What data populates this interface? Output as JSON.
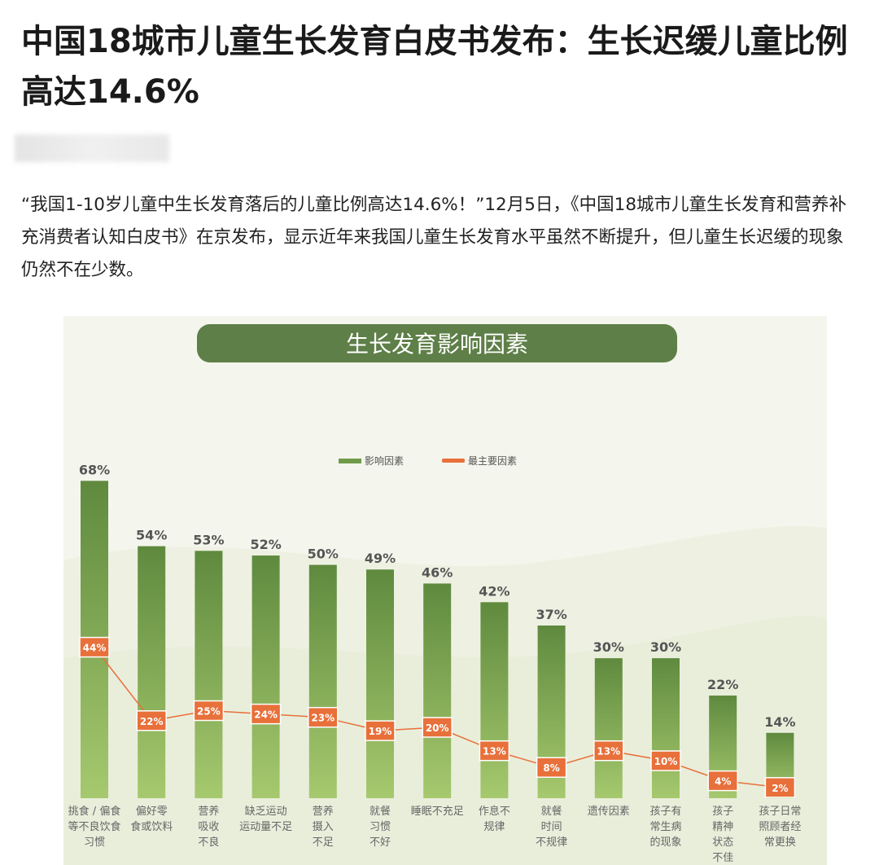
{
  "article": {
    "title": "中国18城市儿童生长发育白皮书发布：生长迟缓儿童比例高达14.6%",
    "paragraph": "“我国1-10岁儿童中生长发育落后的儿童比例高达14.6%！”12月5日，《中国18城市儿童生长发育和营养补充消费者认知白皮书》在京发布，显示近年来我国儿童生长发育水平虽然不断提升，但儿童生长迟缓的现象仍然不在少数。"
  },
  "chart_data": {
    "type": "bar",
    "title": "生长发育影响因素",
    "legend_position": "top-center",
    "categories": [
      "挑食/偏食等不良饮食习惯",
      "偏好零食或饮料",
      "营养吸收不良",
      "缺乏运动运动量不足",
      "营养摄入不足",
      "就餐习惯不好",
      "睡眠不充足",
      "作息不规律",
      "就餐时间不规律",
      "遗传因素",
      "孩子有常生病的现象",
      "孩子精神状态不佳",
      "孩子日常照顾者经常更换"
    ],
    "category_lines": [
      [
        "挑食 / 偏食",
        "等不良饮食",
        "习惯"
      ],
      [
        "偏好零",
        "食或饮料"
      ],
      [
        "营养",
        "吸收",
        "不良"
      ],
      [
        "缺乏运动",
        "运动量不足"
      ],
      [
        "营养",
        "摄入",
        "不足"
      ],
      [
        "就餐",
        "习惯",
        "不好"
      ],
      [
        "睡眠不充足"
      ],
      [
        "作息不",
        "规律"
      ],
      [
        "就餐",
        "时间",
        "不规律"
      ],
      [
        "遗传因素"
      ],
      [
        "孩子有",
        "常生病",
        "的现象"
      ],
      [
        "孩子",
        "精神",
        "状态",
        "不佳"
      ],
      [
        "孩子日常",
        "照顾者经",
        "常更换"
      ]
    ],
    "series": [
      {
        "name": "影响因素",
        "type": "bar",
        "color": "#6f9a4c",
        "values": [
          68,
          54,
          53,
          52,
          50,
          49,
          46,
          42,
          37,
          30,
          30,
          22,
          14
        ]
      },
      {
        "name": "最主要因素",
        "type": "line",
        "color": "#e8703a",
        "values": [
          44,
          22,
          25,
          24,
          23,
          19,
          20,
          13,
          8,
          13,
          10,
          4,
          2
        ]
      }
    ],
    "unit": "%"
  }
}
